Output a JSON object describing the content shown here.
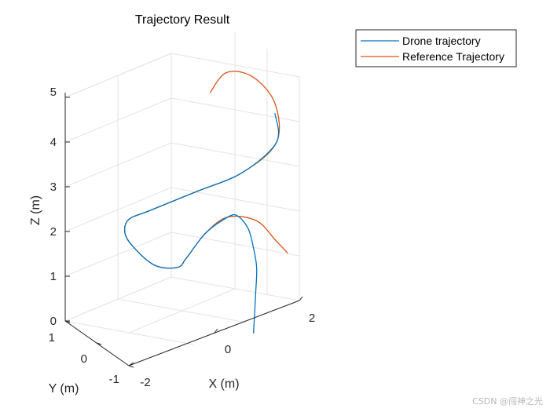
{
  "chart_data": {
    "type": "line",
    "title": "Trajectory Result",
    "xlabel": "X (m)",
    "ylabel": "Y (m)",
    "zlabel": "Z (m)",
    "x_ticks": [
      "-2",
      "0",
      "2"
    ],
    "y_ticks": [
      "-1",
      "0",
      "1"
    ],
    "z_ticks": [
      "0",
      "1",
      "2",
      "3",
      "4",
      "5"
    ],
    "xlim": [
      -2,
      2
    ],
    "ylim": [
      -1,
      1
    ],
    "zlim": [
      0,
      5
    ],
    "grid": true,
    "legend_position": "top-right",
    "series": [
      {
        "name": "Reference Trajectory",
        "color": "#d95319",
        "points": [
          [
            0.05,
            0.2,
            5.25
          ],
          [
            0.55,
            0.35,
            5.45
          ],
          [
            1.05,
            0.2,
            5.25
          ],
          [
            1.35,
            -0.1,
            4.7
          ],
          [
            1.2,
            -0.35,
            4.0
          ],
          [
            0.5,
            -0.2,
            3.5
          ],
          [
            -0.3,
            0.15,
            3.2
          ],
          [
            -1.0,
            0.7,
            2.75
          ],
          [
            -1.25,
            1.0,
            2.5
          ],
          [
            -1.2,
            1.2,
            2.1
          ],
          [
            -0.95,
            1.3,
            1.65
          ],
          [
            -0.5,
            1.2,
            1.1
          ],
          [
            -0.15,
            0.95,
            1.05
          ],
          [
            -0.05,
            0.8,
            1.3
          ],
          [
            0.1,
            0.4,
            2.0
          ],
          [
            0.4,
            0.1,
            2.4
          ],
          [
            0.85,
            -0.2,
            2.3
          ],
          [
            1.15,
            -0.4,
            1.85
          ],
          [
            1.35,
            -0.5,
            1.55
          ]
        ]
      },
      {
        "name": "Drone trajectory",
        "color": "#0072bd",
        "points": [
          [
            1.33,
            -0.13,
            4.5
          ],
          [
            1.2,
            -0.35,
            4.0
          ],
          [
            0.5,
            -0.2,
            3.5
          ],
          [
            -0.3,
            0.15,
            3.2
          ],
          [
            -1.0,
            0.7,
            2.75
          ],
          [
            -1.25,
            1.0,
            2.5
          ],
          [
            -1.2,
            1.2,
            2.1
          ],
          [
            -0.95,
            1.3,
            1.65
          ],
          [
            -0.5,
            1.2,
            1.1
          ],
          [
            -0.15,
            0.95,
            1.05
          ],
          [
            -0.05,
            0.8,
            1.3
          ],
          [
            0.1,
            0.4,
            2.0
          ],
          [
            0.4,
            0.1,
            2.4
          ],
          [
            0.55,
            0.0,
            2.42
          ],
          [
            0.65,
            -0.2,
            2.2
          ],
          [
            0.7,
            -0.3,
            1.8
          ],
          [
            0.7,
            -0.4,
            1.4
          ],
          [
            0.6,
            -0.5,
            0.9
          ],
          [
            0.5,
            -0.6,
            0.5
          ],
          [
            0.4,
            -0.7,
            0.2
          ]
        ]
      }
    ]
  },
  "watermark": "CSDN @闯神之光"
}
